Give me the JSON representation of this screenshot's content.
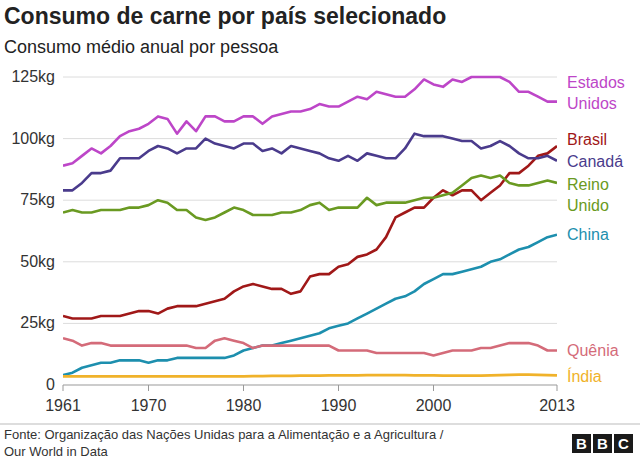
{
  "chart_data": {
    "type": "line",
    "title": "Consumo de carne por país selecionado",
    "subtitle": "Consumo médio anual por pessoa",
    "source": [
      "Fonte: Organização das Nações Unidas para a Alimentação e a Agricultura /",
      "Our World in Data"
    ],
    "logo": "BBC",
    "x": [
      1961,
      1962,
      1963,
      1964,
      1965,
      1966,
      1967,
      1968,
      1969,
      1970,
      1971,
      1972,
      1973,
      1974,
      1975,
      1976,
      1977,
      1978,
      1979,
      1980,
      1981,
      1982,
      1983,
      1984,
      1985,
      1986,
      1987,
      1988,
      1989,
      1990,
      1991,
      1992,
      1993,
      1994,
      1995,
      1996,
      1997,
      1998,
      1999,
      2000,
      2001,
      2002,
      2003,
      2004,
      2005,
      2006,
      2007,
      2008,
      2009,
      2010,
      2011,
      2012,
      2013
    ],
    "xlim": [
      1961,
      2013
    ],
    "xticks": [
      1961,
      1970,
      1980,
      1990,
      2000,
      2013
    ],
    "ylim": [
      0,
      125
    ],
    "yticks": [
      0,
      {
        "value": 25,
        "label": "25kg"
      },
      {
        "value": 50,
        "label": "50kg"
      },
      {
        "value": 75,
        "label": "75kg"
      },
      {
        "value": 100,
        "label": "100kg"
      },
      {
        "value": 125,
        "label": "125kg"
      }
    ],
    "grid": true,
    "series": [
      {
        "name": "Estados Unidos",
        "color": "#bd46c8",
        "values": [
          89,
          90,
          93,
          96,
          94,
          97,
          101,
          103,
          104,
          106,
          109,
          108,
          102,
          107,
          103,
          109,
          109,
          107,
          107,
          109,
          109,
          106,
          109,
          110,
          111,
          111,
          112,
          114,
          113,
          113,
          115,
          117,
          116,
          119,
          118,
          117,
          117,
          120,
          124,
          122,
          121,
          124,
          123,
          125,
          125,
          125,
          125,
          123,
          119,
          119,
          117,
          115,
          115
        ]
      },
      {
        "name": "Brasil",
        "color": "#a01818",
        "values": [
          28,
          27,
          27,
          27,
          28,
          28,
          28,
          29,
          30,
          30,
          29,
          31,
          32,
          32,
          32,
          33,
          34,
          35,
          38,
          40,
          41,
          40,
          39,
          39,
          37,
          38,
          44,
          45,
          45,
          48,
          49,
          52,
          53,
          55,
          60,
          68,
          70,
          72,
          72,
          76,
          79,
          77,
          79,
          79,
          75,
          78,
          81,
          86,
          86,
          89,
          93,
          94,
          97
        ]
      },
      {
        "name": "Canadá",
        "color": "#4a3b8c",
        "values": [
          79,
          79,
          82,
          86,
          86,
          87,
          92,
          92,
          92,
          95,
          97,
          96,
          94,
          96,
          96,
          100,
          98,
          97,
          96,
          98,
          98,
          95,
          96,
          94,
          97,
          96,
          95,
          94,
          92,
          91,
          93,
          91,
          94,
          93,
          92,
          92,
          96,
          102,
          101,
          101,
          101,
          100,
          99,
          99,
          96,
          97,
          99,
          97,
          94,
          92,
          92,
          93,
          91
        ]
      },
      {
        "name": "Reino Unido",
        "color": "#6a9a22",
        "values": [
          70,
          71,
          70,
          70,
          71,
          71,
          71,
          72,
          72,
          73,
          75,
          74,
          71,
          71,
          68,
          67,
          68,
          70,
          72,
          71,
          69,
          69,
          69,
          70,
          70,
          71,
          73,
          74,
          71,
          72,
          72,
          72,
          76,
          73,
          74,
          74,
          74,
          75,
          76,
          76,
          77,
          78,
          81,
          84,
          85,
          84,
          85,
          82,
          81,
          81,
          82,
          83,
          82
        ]
      },
      {
        "name": "China",
        "color": "#1d8fae",
        "values": [
          4,
          5,
          7,
          8,
          9,
          9,
          10,
          10,
          10,
          9,
          10,
          10,
          11,
          11,
          11,
          11,
          11,
          11,
          12,
          14,
          15,
          16,
          16,
          17,
          18,
          19,
          20,
          21,
          23,
          24,
          25,
          27,
          29,
          31,
          33,
          35,
          36,
          38,
          41,
          43,
          45,
          45,
          46,
          47,
          48,
          50,
          51,
          53,
          55,
          56,
          58,
          60,
          61
        ]
      },
      {
        "name": "Quênia",
        "color": "#d46b79",
        "values": [
          19,
          18,
          16,
          17,
          17,
          16,
          16,
          16,
          16,
          16,
          16,
          16,
          16,
          16,
          15,
          15,
          18,
          19,
          18,
          17,
          15,
          16,
          16,
          16,
          16,
          16,
          16,
          16,
          16,
          14,
          14,
          14,
          14,
          13,
          13,
          13,
          13,
          13,
          13,
          12,
          13,
          14,
          14,
          14,
          15,
          15,
          16,
          17,
          17,
          17,
          16,
          14,
          14
        ]
      },
      {
        "name": "Índia",
        "color": "#f0b22a",
        "values": [
          3.5,
          3.5,
          3.5,
          3.5,
          3.5,
          3.5,
          3.5,
          3.5,
          3.5,
          3.5,
          3.5,
          3.5,
          3.5,
          3.5,
          3.5,
          3.5,
          3.5,
          3.5,
          3.5,
          3.5,
          3.6,
          3.6,
          3.7,
          3.7,
          3.7,
          3.8,
          3.8,
          3.8,
          3.9,
          3.9,
          3.9,
          3.9,
          4,
          4,
          4,
          4,
          4,
          3.9,
          3.9,
          3.9,
          3.8,
          3.8,
          3.8,
          3.8,
          3.8,
          3.9,
          4,
          4.1,
          4.2,
          4.2,
          4.1,
          4,
          3.9
        ]
      }
    ]
  }
}
